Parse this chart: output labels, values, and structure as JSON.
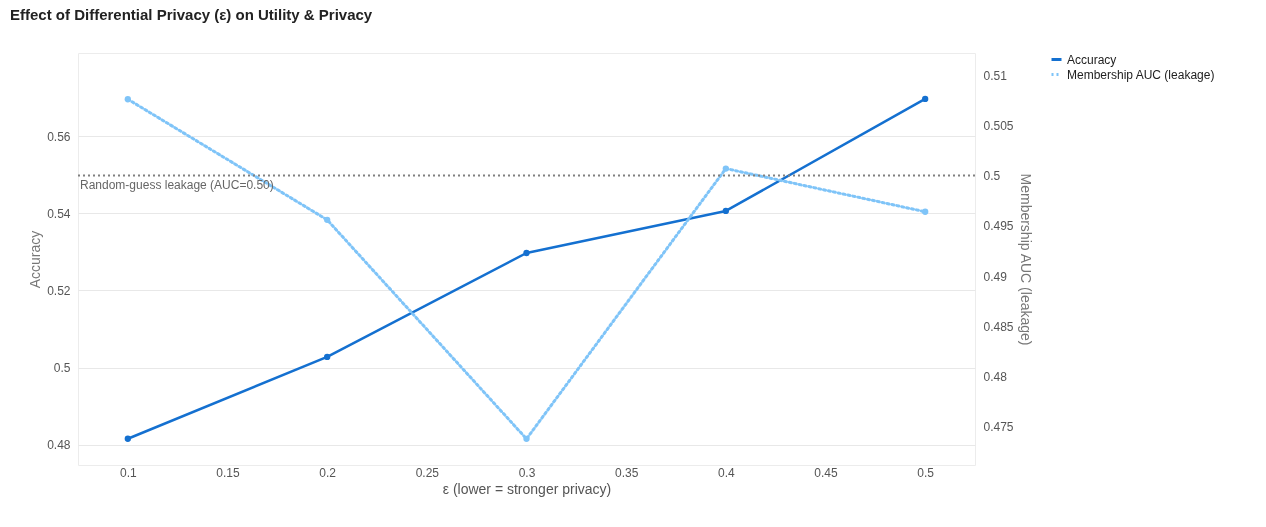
{
  "chart_data": {
    "type": "line",
    "title": "Effect of Differential Privacy (ε) on Utility & Privacy",
    "xlabel": "ε (lower = stronger privacy)",
    "ylabel": "Accuracy",
    "y2label": "Membership AUC (leakage)",
    "x": [
      0.1,
      0.2,
      0.3,
      0.4,
      0.5
    ],
    "series": [
      {
        "name": "Accuracy",
        "color": "#1470d0",
        "values": [
          0.4816,
          0.5028,
          0.5297,
          0.5406,
          0.5696
        ],
        "line_style": "solid"
      },
      {
        "name": "Membership AUC (leakage)",
        "color": "#7fc4f8",
        "values": [
          0.5076,
          0.4956,
          0.4738,
          0.5007,
          0.4964
        ],
        "axis": "y2",
        "line_style": "dotted"
      }
    ],
    "xlim": [
      0.075,
      0.525
    ],
    "xticks": [
      0.1,
      0.15,
      0.2,
      0.25,
      0.3,
      0.35,
      0.4,
      0.45,
      0.5
    ],
    "ylim": [
      0.4748,
      0.5815
    ],
    "yticks": [
      0.48,
      0.5,
      0.52,
      0.54,
      0.56
    ],
    "y2lim": [
      0.4712,
      0.5122
    ],
    "y2ticks": [
      0.475,
      0.48,
      0.485,
      0.49,
      0.495,
      0.5,
      0.505,
      0.51
    ],
    "ref_lines": [
      {
        "axis": "y2",
        "value": 0.5,
        "label": "Random-guess leakage (AUC=0.50)",
        "color": "#808080",
        "line_style": "dotted"
      }
    ],
    "grid": "y",
    "legend": "top right",
    "marker": "circle"
  }
}
